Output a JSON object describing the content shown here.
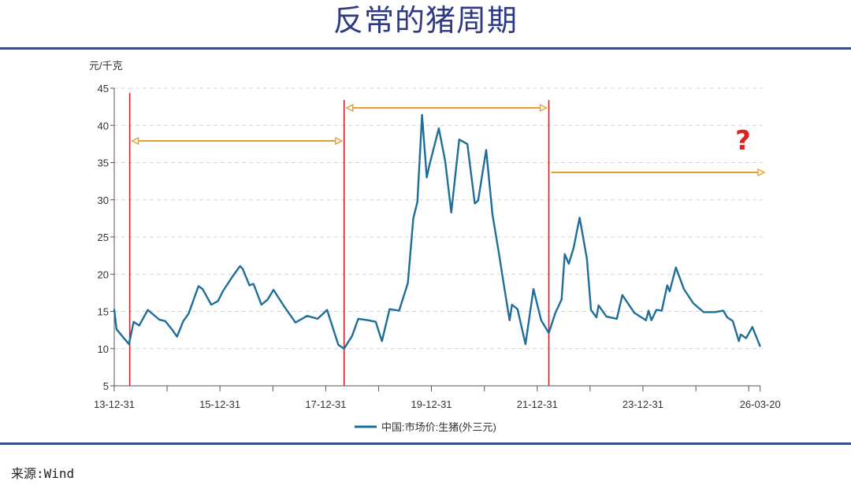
{
  "title": "反常的猪周期",
  "source": "来源:Wind",
  "chart_data": {
    "type": "line",
    "title": "",
    "ylabel": "元/千克",
    "xlabel": "",
    "ylim": [
      5,
      45
    ],
    "yticks": [
      5,
      10,
      15,
      20,
      25,
      30,
      35,
      40,
      45
    ],
    "xlim": [
      "2013-12-31",
      "2026-03-20"
    ],
    "xtick_labels": [
      {
        "date": "2013-12-31",
        "label": "13-12-31"
      },
      {
        "date": "2015-12-31",
        "label": "15-12-31"
      },
      {
        "date": "2017-12-31",
        "label": "17-12-31"
      },
      {
        "date": "2019-12-31",
        "label": "19-12-31"
      },
      {
        "date": "2021-12-31",
        "label": "21-12-31"
      },
      {
        "date": "2023-12-31",
        "label": "23-12-31"
      },
      {
        "date": "2026-03-20",
        "label": "26-03-20"
      }
    ],
    "minor_xticks": [
      "2014-12-31",
      "2016-12-31",
      "2018-12-31",
      "2020-12-31",
      "2022-12-31",
      "2024-12-31",
      "2025-12-31"
    ],
    "grid": "horizontal dashed",
    "legend_position": "bottom",
    "colors": {
      "series": "#1f6e9a",
      "cycle_marker": "#c4262e",
      "arrow": "#e6a030",
      "question": "#e0201c",
      "title": "#2e3a86"
    },
    "series": [
      {
        "name": "中国:市场价:生猪(外三元)",
        "points": [
          [
            "2013-12-31",
            15.3
          ],
          [
            "2014-01-16",
            12.6
          ],
          [
            "2014-02-23",
            11.7
          ],
          [
            "2014-04-12",
            10.6
          ],
          [
            "2014-05-14",
            13.6
          ],
          [
            "2014-06-21",
            13.1
          ],
          [
            "2014-08-20",
            15.2
          ],
          [
            "2014-11-06",
            13.9
          ],
          [
            "2014-12-18",
            13.7
          ],
          [
            "2015-02-02",
            12.6
          ],
          [
            "2015-03-10",
            11.6
          ],
          [
            "2015-04-22",
            13.7
          ],
          [
            "2015-05-29",
            14.7
          ],
          [
            "2015-08-05",
            18.4
          ],
          [
            "2015-09-02",
            18.0
          ],
          [
            "2015-11-01",
            15.9
          ],
          [
            "2015-12-18",
            16.4
          ],
          [
            "2016-01-20",
            17.7
          ],
          [
            "2016-03-24",
            19.6
          ],
          [
            "2016-05-18",
            21.1
          ],
          [
            "2016-06-05",
            20.7
          ],
          [
            "2016-07-22",
            18.5
          ],
          [
            "2016-08-19",
            18.7
          ],
          [
            "2016-10-13",
            15.9
          ],
          [
            "2016-11-25",
            16.6
          ],
          [
            "2017-01-04",
            17.9
          ],
          [
            "2017-03-14",
            15.8
          ],
          [
            "2017-06-05",
            13.5
          ],
          [
            "2017-08-24",
            14.4
          ],
          [
            "2017-11-05",
            14.0
          ],
          [
            "2018-01-09",
            15.2
          ],
          [
            "2018-03-28",
            10.5
          ],
          [
            "2018-05-07",
            10.0
          ],
          [
            "2018-07-01",
            11.7
          ],
          [
            "2018-08-13",
            14.0
          ],
          [
            "2018-10-22",
            13.8
          ],
          [
            "2018-12-11",
            13.6
          ],
          [
            "2019-01-23",
            11.0
          ],
          [
            "2019-03-17",
            15.3
          ],
          [
            "2019-05-22",
            15.1
          ],
          [
            "2019-07-21",
            18.8
          ],
          [
            "2019-08-28",
            27.5
          ],
          [
            "2019-09-25",
            29.7
          ],
          [
            "2019-10-27",
            41.4
          ],
          [
            "2019-11-29",
            33.0
          ],
          [
            "2019-12-16",
            34.6
          ],
          [
            "2020-02-20",
            39.6
          ],
          [
            "2020-04-04",
            35.2
          ],
          [
            "2020-05-16",
            28.3
          ],
          [
            "2020-07-10",
            38.1
          ],
          [
            "2020-09-04",
            37.5
          ],
          [
            "2020-10-26",
            29.5
          ],
          [
            "2020-11-18",
            29.9
          ],
          [
            "2021-01-12",
            36.7
          ],
          [
            "2021-02-25",
            28.0
          ],
          [
            "2021-04-09",
            23.0
          ],
          [
            "2021-05-16",
            18.4
          ],
          [
            "2021-06-23",
            13.8
          ],
          [
            "2021-07-10",
            15.9
          ],
          [
            "2021-08-17",
            15.3
          ],
          [
            "2021-10-11",
            10.6
          ],
          [
            "2021-12-05",
            18.0
          ],
          [
            "2022-01-27",
            13.8
          ],
          [
            "2022-03-21",
            12.1
          ],
          [
            "2022-05-05",
            14.8
          ],
          [
            "2022-06-17",
            16.6
          ],
          [
            "2022-07-09",
            22.7
          ],
          [
            "2022-08-06",
            21.4
          ],
          [
            "2022-09-08",
            23.5
          ],
          [
            "2022-10-20",
            27.6
          ],
          [
            "2022-12-09",
            22.1
          ],
          [
            "2023-01-06",
            15.2
          ],
          [
            "2023-02-13",
            14.2
          ],
          [
            "2023-02-28",
            15.8
          ],
          [
            "2023-04-23",
            14.3
          ],
          [
            "2023-07-04",
            14.0
          ],
          [
            "2023-08-11",
            17.2
          ],
          [
            "2023-11-02",
            14.8
          ],
          [
            "2024-01-21",
            13.8
          ],
          [
            "2024-02-08",
            15.1
          ],
          [
            "2024-02-28",
            13.8
          ],
          [
            "2024-04-02",
            15.2
          ],
          [
            "2024-05-09",
            15.1
          ],
          [
            "2024-06-16",
            18.5
          ],
          [
            "2024-07-03",
            17.7
          ],
          [
            "2024-08-15",
            20.9
          ],
          [
            "2024-10-09",
            18.0
          ],
          [
            "2024-12-13",
            16.1
          ],
          [
            "2025-02-22",
            14.9
          ],
          [
            "2025-05-09",
            14.9
          ],
          [
            "2025-07-08",
            15.1
          ],
          [
            "2025-08-05",
            14.2
          ],
          [
            "2025-09-12",
            13.7
          ],
          [
            "2025-10-24",
            11.0
          ],
          [
            "2025-11-06",
            11.9
          ],
          [
            "2025-12-13",
            11.4
          ],
          [
            "2026-01-25",
            12.9
          ],
          [
            "2026-03-20",
            10.3
          ]
        ]
      }
    ],
    "annotations": {
      "cycle_markers": [
        "2014-04-17",
        "2018-05-07",
        "2022-03-21"
      ],
      "cycles": [
        {
          "start": "2014-04-17",
          "end": "2018-05-07",
          "open_ended": false
        },
        {
          "start": "2018-05-07",
          "end": "2022-03-21",
          "open_ended": false
        },
        {
          "start": "2022-03-21",
          "end": "2026-03-20",
          "open_ended": true
        }
      ],
      "question_mark": "?"
    }
  }
}
